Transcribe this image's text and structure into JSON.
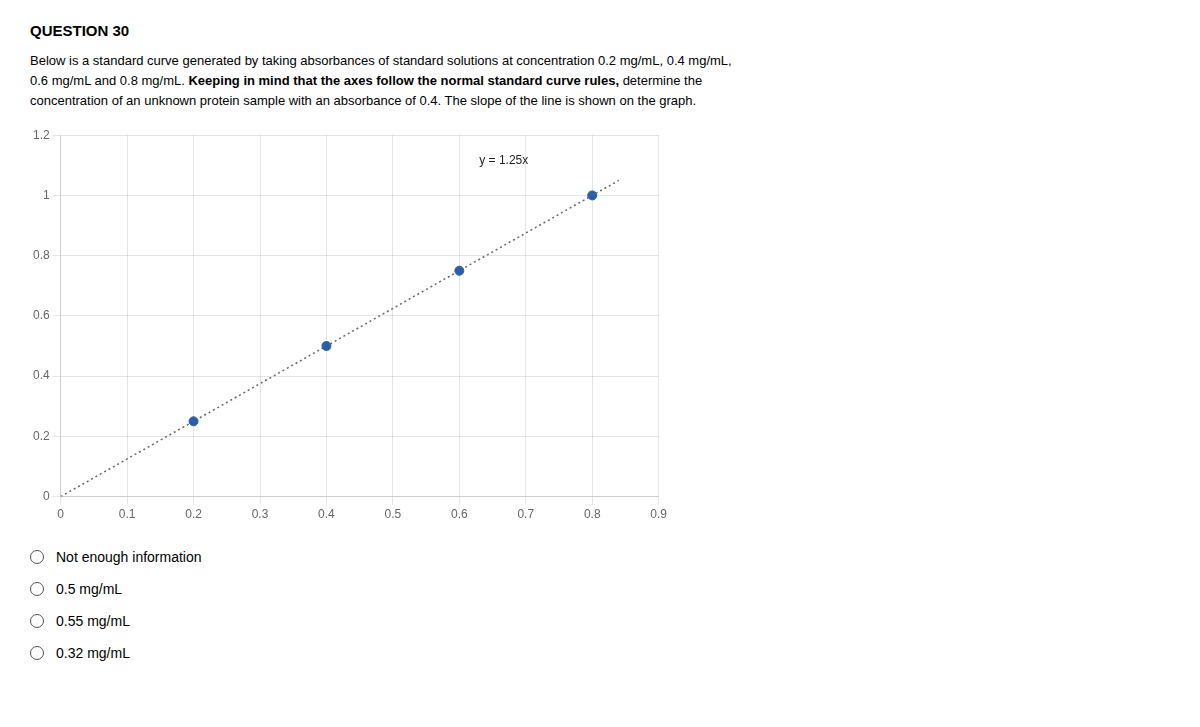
{
  "chart_data": {
    "type": "scatter",
    "title": "QUESTION 30",
    "subtitle": [
      [
        "Below is a standard curve generated by taking absorbances of standard solutions at concentration 0.2 mg/mL, 0.4 mg/mL,"
      ],
      [
        "0.6 mg/mL and 0.8 mg/mL. ",
        "Keeping in mind that the axes follow the normal standard curve rules,",
        " determine the"
      ],
      [
        "concentration of an unknown protein sample with an absorbance of 0.4. The slope of the line is shown on the graph."
      ]
    ],
    "series": [
      {
        "type": "scatter",
        "marker": "circle",
        "color": "#2b5fa5",
        "x": [
          0.2,
          0.4,
          0.6,
          0.8
        ],
        "values": [
          0.25,
          0.5,
          0.75,
          1.0
        ]
      },
      {
        "type": "line",
        "line_style": "dotted",
        "color": "#666666",
        "x": [
          0.0,
          0.84
        ],
        "values": [
          0.0,
          1.05
        ]
      }
    ],
    "annotations": [
      {
        "text": "y = 1.25x",
        "x": 0.63,
        "y": 1.095
      }
    ],
    "xlim": [
      0,
      0.9
    ],
    "ylim": [
      0,
      1.2
    ],
    "xticks": [
      0,
      0.1,
      0.2,
      0.3,
      0.4,
      0.5,
      0.6,
      0.7,
      0.8,
      0.9
    ],
    "yticks": [
      0,
      0.2,
      0.4,
      0.6,
      0.8,
      1,
      1.2
    ],
    "grid": true,
    "choices": [
      "Not enough information",
      "0.5 mg/mL",
      "0.55 mg/mL",
      "0.32 mg/mL"
    ]
  }
}
